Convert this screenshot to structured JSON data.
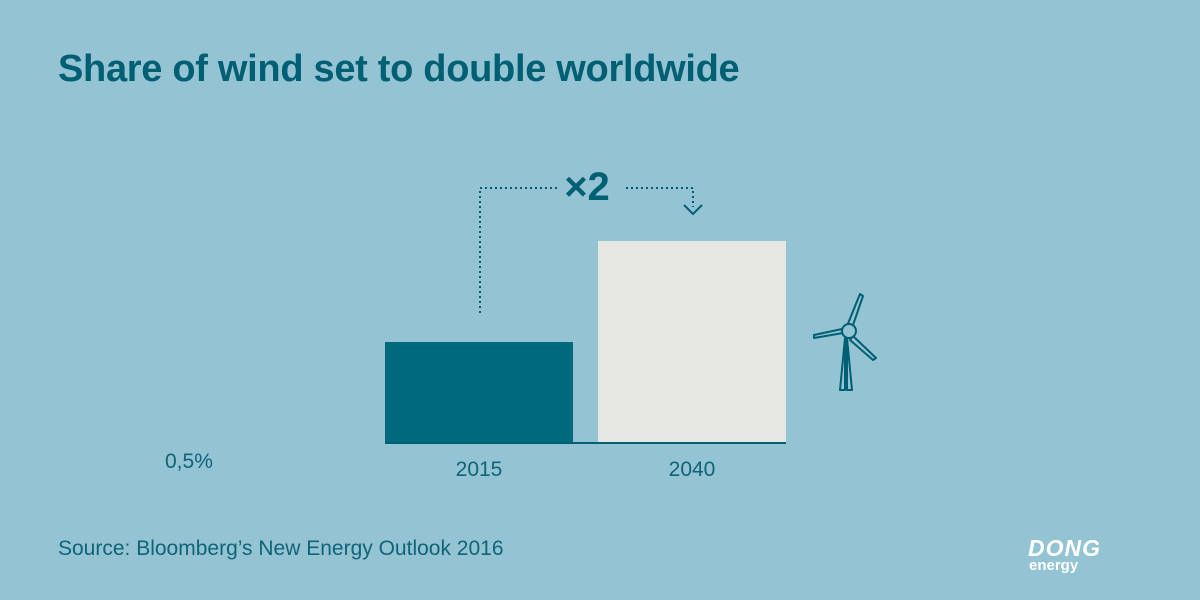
{
  "title": "Share of wind set to double worldwide",
  "source": "Source: Bloomberg’s New Energy Outlook 2016",
  "logo": {
    "line1": "DONG",
    "line2": "energy"
  },
  "colors": {
    "background": "#94c3d4",
    "bar_2015": "#006a7c",
    "bar_2040": "#e6e6e3",
    "text": "#005f73"
  },
  "icons": [
    "wind-turbine-icon",
    "arrow-down-icon"
  ],
  "chart_data": {
    "type": "bar",
    "categories": [
      "2015",
      "2040"
    ],
    "values": [
      0.5,
      1.0
    ],
    "baseline_label": "0,5%",
    "annotation": "×2",
    "grid": false
  }
}
